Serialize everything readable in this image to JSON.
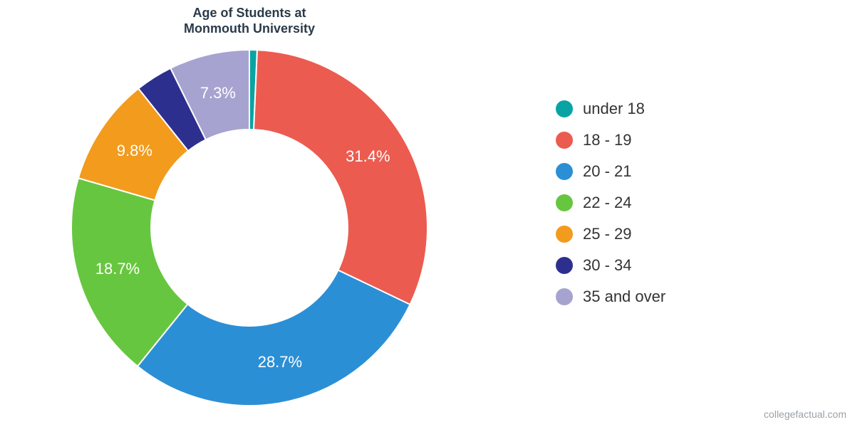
{
  "chart": {
    "type": "donut",
    "title": "Age of Students at\nMonmouth University",
    "title_fontsize": 18,
    "title_color": "#2a3a4a",
    "background_color": "#ffffff",
    "donut_outer_radius": 250,
    "donut_inner_radius": 138,
    "label_color": "#ffffff",
    "label_fontsize": 22,
    "slice_label_min_percent": 4.0,
    "series": [
      {
        "label": "under 18",
        "color": "#0aa3a3",
        "percent": 0.7,
        "display": "0.7%"
      },
      {
        "label": "18 - 19",
        "color": "#ec5b4f",
        "percent": 31.4,
        "display": "31.4%"
      },
      {
        "label": "20 - 21",
        "color": "#2b8fd6",
        "percent": 28.7,
        "display": "28.7%"
      },
      {
        "label": "22 - 24",
        "color": "#67c63f",
        "percent": 18.7,
        "display": "18.7%"
      },
      {
        "label": "25 - 29",
        "color": "#f29b1d",
        "percent": 9.8,
        "display": "9.8%"
      },
      {
        "label": "30 - 34",
        "color": "#2d2f8f",
        "percent": 3.4,
        "display": "3.4%"
      },
      {
        "label": "35 and over",
        "color": "#a7a3d0",
        "percent": 7.3,
        "display": "7.3%"
      }
    ],
    "legend": {
      "fontsize": 22,
      "text_color": "#333333",
      "swatch_size": 24
    },
    "attribution": "collegefactual.com",
    "attribution_color": "#9aa1a8"
  }
}
